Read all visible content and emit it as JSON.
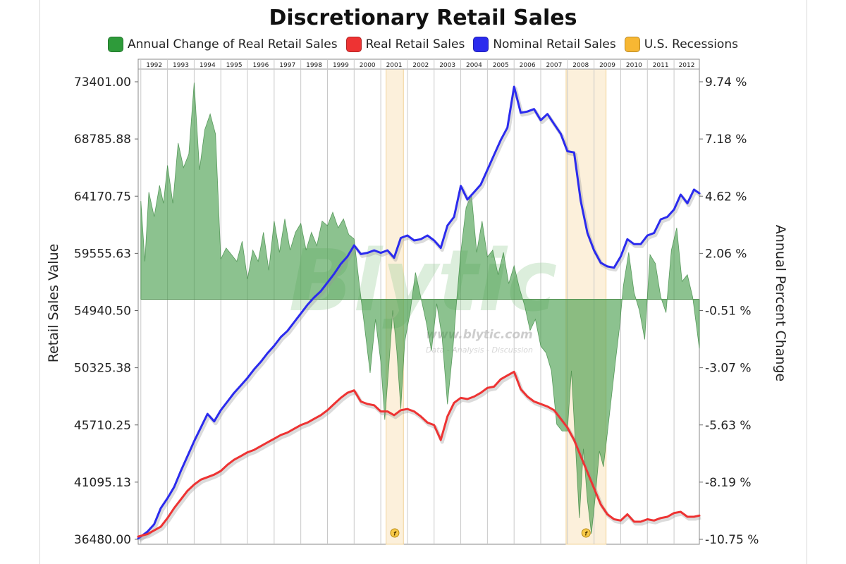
{
  "chart_data": {
    "type": "area",
    "title": "Discretionary Retail Sales",
    "legend": [
      {
        "name": "Annual Change of Real Retail Sales",
        "color": "#2e9b3a"
      },
      {
        "name": "Real Retail Sales",
        "color": "#ee3333"
      },
      {
        "name": "Nominal Retail Sales",
        "color": "#2b2bee"
      },
      {
        "name": "U.S. Recessions",
        "color": "#f7b733"
      }
    ],
    "legend_position": "top-center",
    "ylabel_left": "Retail Sales Value",
    "ylabel_right": "Annual Percent Change",
    "ylim_left": [
      36480.0,
      73401.0
    ],
    "ylim_right": [
      -10.75,
      9.74
    ],
    "yticks_left": [
      "73401.00",
      "68785.88",
      "64170.75",
      "59555.63",
      "54940.50",
      "50325.38",
      "45710.25",
      "41095.13",
      "36480.00"
    ],
    "yticks_right": [
      "9.74 %",
      "7.18 %",
      "4.62 %",
      "2.06 %",
      "-0.51 %",
      "-3.07 %",
      "-5.63 %",
      "-8.19 %",
      "-10.75 %"
    ],
    "x_range": [
      1991.9,
      2012.95
    ],
    "x_years": [
      "1992",
      "1993",
      "1994",
      "1995",
      "1996",
      "1997",
      "1998",
      "1999",
      "2000",
      "2001",
      "2002",
      "2003",
      "2004",
      "2005",
      "2006",
      "2007",
      "2008",
      "2009",
      "2010",
      "2011",
      "2012"
    ],
    "recessions": [
      {
        "start": 2001.2,
        "end": 2001.85,
        "marker": "f"
      },
      {
        "start": 2007.95,
        "end": 2009.45,
        "marker": "f"
      }
    ],
    "watermark": {
      "logo": "Blytic",
      "url": "www.blytic.com",
      "tagline": "Data - Analysis - Discussion"
    },
    "series": [
      {
        "name": "Nominal Retail Sales",
        "axis": "left",
        "color": "#2b2bee",
        "x": [
          1991.9,
          1992.25,
          1992.5,
          1992.75,
          1993.0,
          1993.25,
          1993.5,
          1993.75,
          1994.0,
          1994.25,
          1994.5,
          1994.75,
          1995.0,
          1995.25,
          1995.5,
          1995.75,
          1996.0,
          1996.25,
          1996.5,
          1996.75,
          1997.0,
          1997.25,
          1997.5,
          1997.75,
          1998.0,
          1998.25,
          1998.5,
          1998.75,
          1999.0,
          1999.25,
          1999.5,
          1999.75,
          2000.0,
          2000.25,
          2000.5,
          2000.75,
          2001.0,
          2001.25,
          2001.5,
          2001.75,
          2002.0,
          2002.25,
          2002.5,
          2002.75,
          2003.0,
          2003.25,
          2003.5,
          2003.75,
          2004.0,
          2004.25,
          2004.5,
          2004.75,
          2005.0,
          2005.25,
          2005.5,
          2005.75,
          2006.0,
          2006.25,
          2006.5,
          2006.75,
          2007.0,
          2007.25,
          2007.5,
          2007.75,
          2008.0,
          2008.25,
          2008.5,
          2008.75,
          2009.0,
          2009.25,
          2009.5,
          2009.75,
          2010.0,
          2010.25,
          2010.5,
          2010.75,
          2011.0,
          2011.25,
          2011.5,
          2011.75,
          2012.0,
          2012.25,
          2012.5,
          2012.75,
          2012.95
        ],
        "values": [
          36550,
          37100,
          37700,
          39000,
          39800,
          40700,
          42000,
          43200,
          44400,
          45500,
          46600,
          46000,
          46900,
          47600,
          48300,
          48900,
          49500,
          50200,
          50800,
          51500,
          52100,
          52800,
          53300,
          54000,
          54700,
          55400,
          56000,
          56500,
          57200,
          57900,
          58700,
          59300,
          60200,
          59500,
          59600,
          59800,
          59600,
          59800,
          59200,
          60800,
          61000,
          60600,
          60700,
          61000,
          60600,
          60000,
          61800,
          62500,
          65000,
          63900,
          64500,
          65100,
          66300,
          67500,
          68700,
          69700,
          73000,
          70900,
          71000,
          71200,
          70300,
          70800,
          70000,
          69200,
          67800,
          67700,
          63800,
          61200,
          59800,
          58800,
          58500,
          58400,
          59300,
          60700,
          60300,
          60300,
          61000,
          61200,
          62300,
          62500,
          63100,
          64300,
          63600,
          64700,
          64400
        ]
      },
      {
        "name": "Real Retail Sales",
        "axis": "left",
        "color": "#ee3333",
        "x": [
          1991.9,
          1992.25,
          1992.5,
          1992.75,
          1993.0,
          1993.25,
          1993.5,
          1993.75,
          1994.0,
          1994.25,
          1994.5,
          1994.75,
          1995.0,
          1995.25,
          1995.5,
          1995.75,
          1996.0,
          1996.25,
          1996.5,
          1996.75,
          1997.0,
          1997.25,
          1997.5,
          1997.75,
          1998.0,
          1998.25,
          1998.5,
          1998.75,
          1999.0,
          1999.25,
          1999.5,
          1999.75,
          2000.0,
          2000.25,
          2000.5,
          2000.75,
          2001.0,
          2001.25,
          2001.5,
          2001.75,
          2002.0,
          2002.25,
          2002.5,
          2002.75,
          2003.0,
          2003.25,
          2003.5,
          2003.75,
          2004.0,
          2004.25,
          2004.5,
          2004.75,
          2005.0,
          2005.25,
          2005.5,
          2005.75,
          2006.0,
          2006.25,
          2006.5,
          2006.75,
          2007.0,
          2007.25,
          2007.5,
          2007.75,
          2008.0,
          2008.25,
          2008.5,
          2008.75,
          2009.0,
          2009.25,
          2009.5,
          2009.75,
          2010.0,
          2010.25,
          2010.5,
          2010.75,
          2011.0,
          2011.25,
          2011.5,
          2011.75,
          2012.0,
          2012.25,
          2012.5,
          2012.75,
          2012.95
        ],
        "values": [
          36700,
          36900,
          37200,
          37500,
          38200,
          39000,
          39700,
          40400,
          40900,
          41300,
          41500,
          41700,
          42000,
          42500,
          42900,
          43200,
          43500,
          43700,
          44000,
          44300,
          44600,
          44900,
          45100,
          45400,
          45700,
          45900,
          46200,
          46500,
          46900,
          47400,
          47900,
          48300,
          48500,
          47600,
          47400,
          47300,
          46800,
          46800,
          46500,
          46900,
          47000,
          46800,
          46400,
          45900,
          45700,
          44500,
          46400,
          47500,
          47900,
          47800,
          48000,
          48300,
          48700,
          48800,
          49400,
          49700,
          50000,
          48600,
          48000,
          47600,
          47400,
          47200,
          46900,
          46200,
          45500,
          44500,
          43200,
          41900,
          40600,
          39300,
          38500,
          38100,
          38000,
          38500,
          37900,
          37900,
          38100,
          38000,
          38200,
          38300,
          38600,
          38700,
          38300,
          38300,
          38400
        ]
      },
      {
        "name": "Annual Change of Real Retail Sales",
        "axis": "right",
        "color": "#2e9b3a",
        "x": [
          1992.0,
          1992.15,
          1992.3,
          1992.5,
          1992.7,
          1992.85,
          1993.0,
          1993.2,
          1993.4,
          1993.6,
          1993.8,
          1994.0,
          1994.2,
          1994.4,
          1994.6,
          1994.8,
          1995.0,
          1995.2,
          1995.4,
          1995.6,
          1995.8,
          1996.0,
          1996.2,
          1996.4,
          1996.6,
          1996.8,
          1997.0,
          1997.2,
          1997.4,
          1997.6,
          1997.8,
          1998.0,
          1998.2,
          1998.4,
          1998.6,
          1998.8,
          1999.0,
          1999.2,
          1999.4,
          1999.6,
          1999.8,
          2000.0,
          2000.2,
          2000.4,
          2000.6,
          2000.8,
          2001.0,
          2001.15,
          2001.3,
          2001.45,
          2001.6,
          2001.75,
          2001.9,
          2002.1,
          2002.3,
          2002.5,
          2002.7,
          2002.9,
          2003.1,
          2003.3,
          2003.5,
          2003.7,
          2003.85,
          2004.0,
          2004.2,
          2004.4,
          2004.6,
          2004.8,
          2005.0,
          2005.2,
          2005.4,
          2005.6,
          2005.8,
          2006.0,
          2006.2,
          2006.4,
          2006.6,
          2006.8,
          2007.0,
          2007.2,
          2007.4,
          2007.6,
          2007.8,
          2008.0,
          2008.15,
          2008.3,
          2008.45,
          2008.6,
          2008.75,
          2008.9,
          2009.05,
          2009.2,
          2009.35,
          2009.5,
          2009.65,
          2009.8,
          2009.95,
          2010.1,
          2010.3,
          2010.5,
          2010.7,
          2010.9,
          2011.1,
          2011.3,
          2011.5,
          2011.7,
          2011.9,
          2012.1,
          2012.3,
          2012.5,
          2012.7,
          2012.95
        ],
        "values": [
          4.4,
          1.7,
          4.8,
          3.7,
          5.1,
          4.3,
          6.0,
          4.3,
          7.0,
          5.9,
          6.5,
          9.7,
          5.8,
          7.6,
          8.3,
          7.4,
          1.8,
          2.3,
          2.0,
          1.7,
          2.6,
          0.9,
          2.2,
          1.7,
          3.0,
          1.3,
          3.5,
          2.1,
          3.6,
          2.2,
          3.0,
          3.4,
          2.2,
          3.0,
          2.4,
          3.5,
          3.3,
          3.9,
          3.2,
          3.6,
          2.9,
          2.7,
          0.6,
          -1.3,
          -3.3,
          -0.9,
          -2.8,
          -5.4,
          -3.0,
          -0.5,
          -2.3,
          -4.9,
          -1.9,
          -0.6,
          1.2,
          0.1,
          -1.0,
          -2.3,
          -0.2,
          -1.7,
          -4.7,
          -2.3,
          0.0,
          2.1,
          4.1,
          4.7,
          2.1,
          3.5,
          1.9,
          2.2,
          1.1,
          2.1,
          0.7,
          1.5,
          0.5,
          -0.3,
          -1.4,
          -0.9,
          -2.1,
          -2.4,
          -3.2,
          -5.6,
          -5.9,
          -5.9,
          -3.2,
          -6.5,
          -9.8,
          -6.7,
          -9.0,
          -10.5,
          -8.8,
          -6.8,
          -7.5,
          -6.0,
          -4.4,
          -2.8,
          -1.3,
          0.6,
          2.1,
          0.3,
          -0.5,
          -1.8,
          2.0,
          1.6,
          0.1,
          -0.6,
          2.2,
          3.2,
          0.8,
          1.1,
          0.1,
          -2.2
        ]
      }
    ]
  }
}
